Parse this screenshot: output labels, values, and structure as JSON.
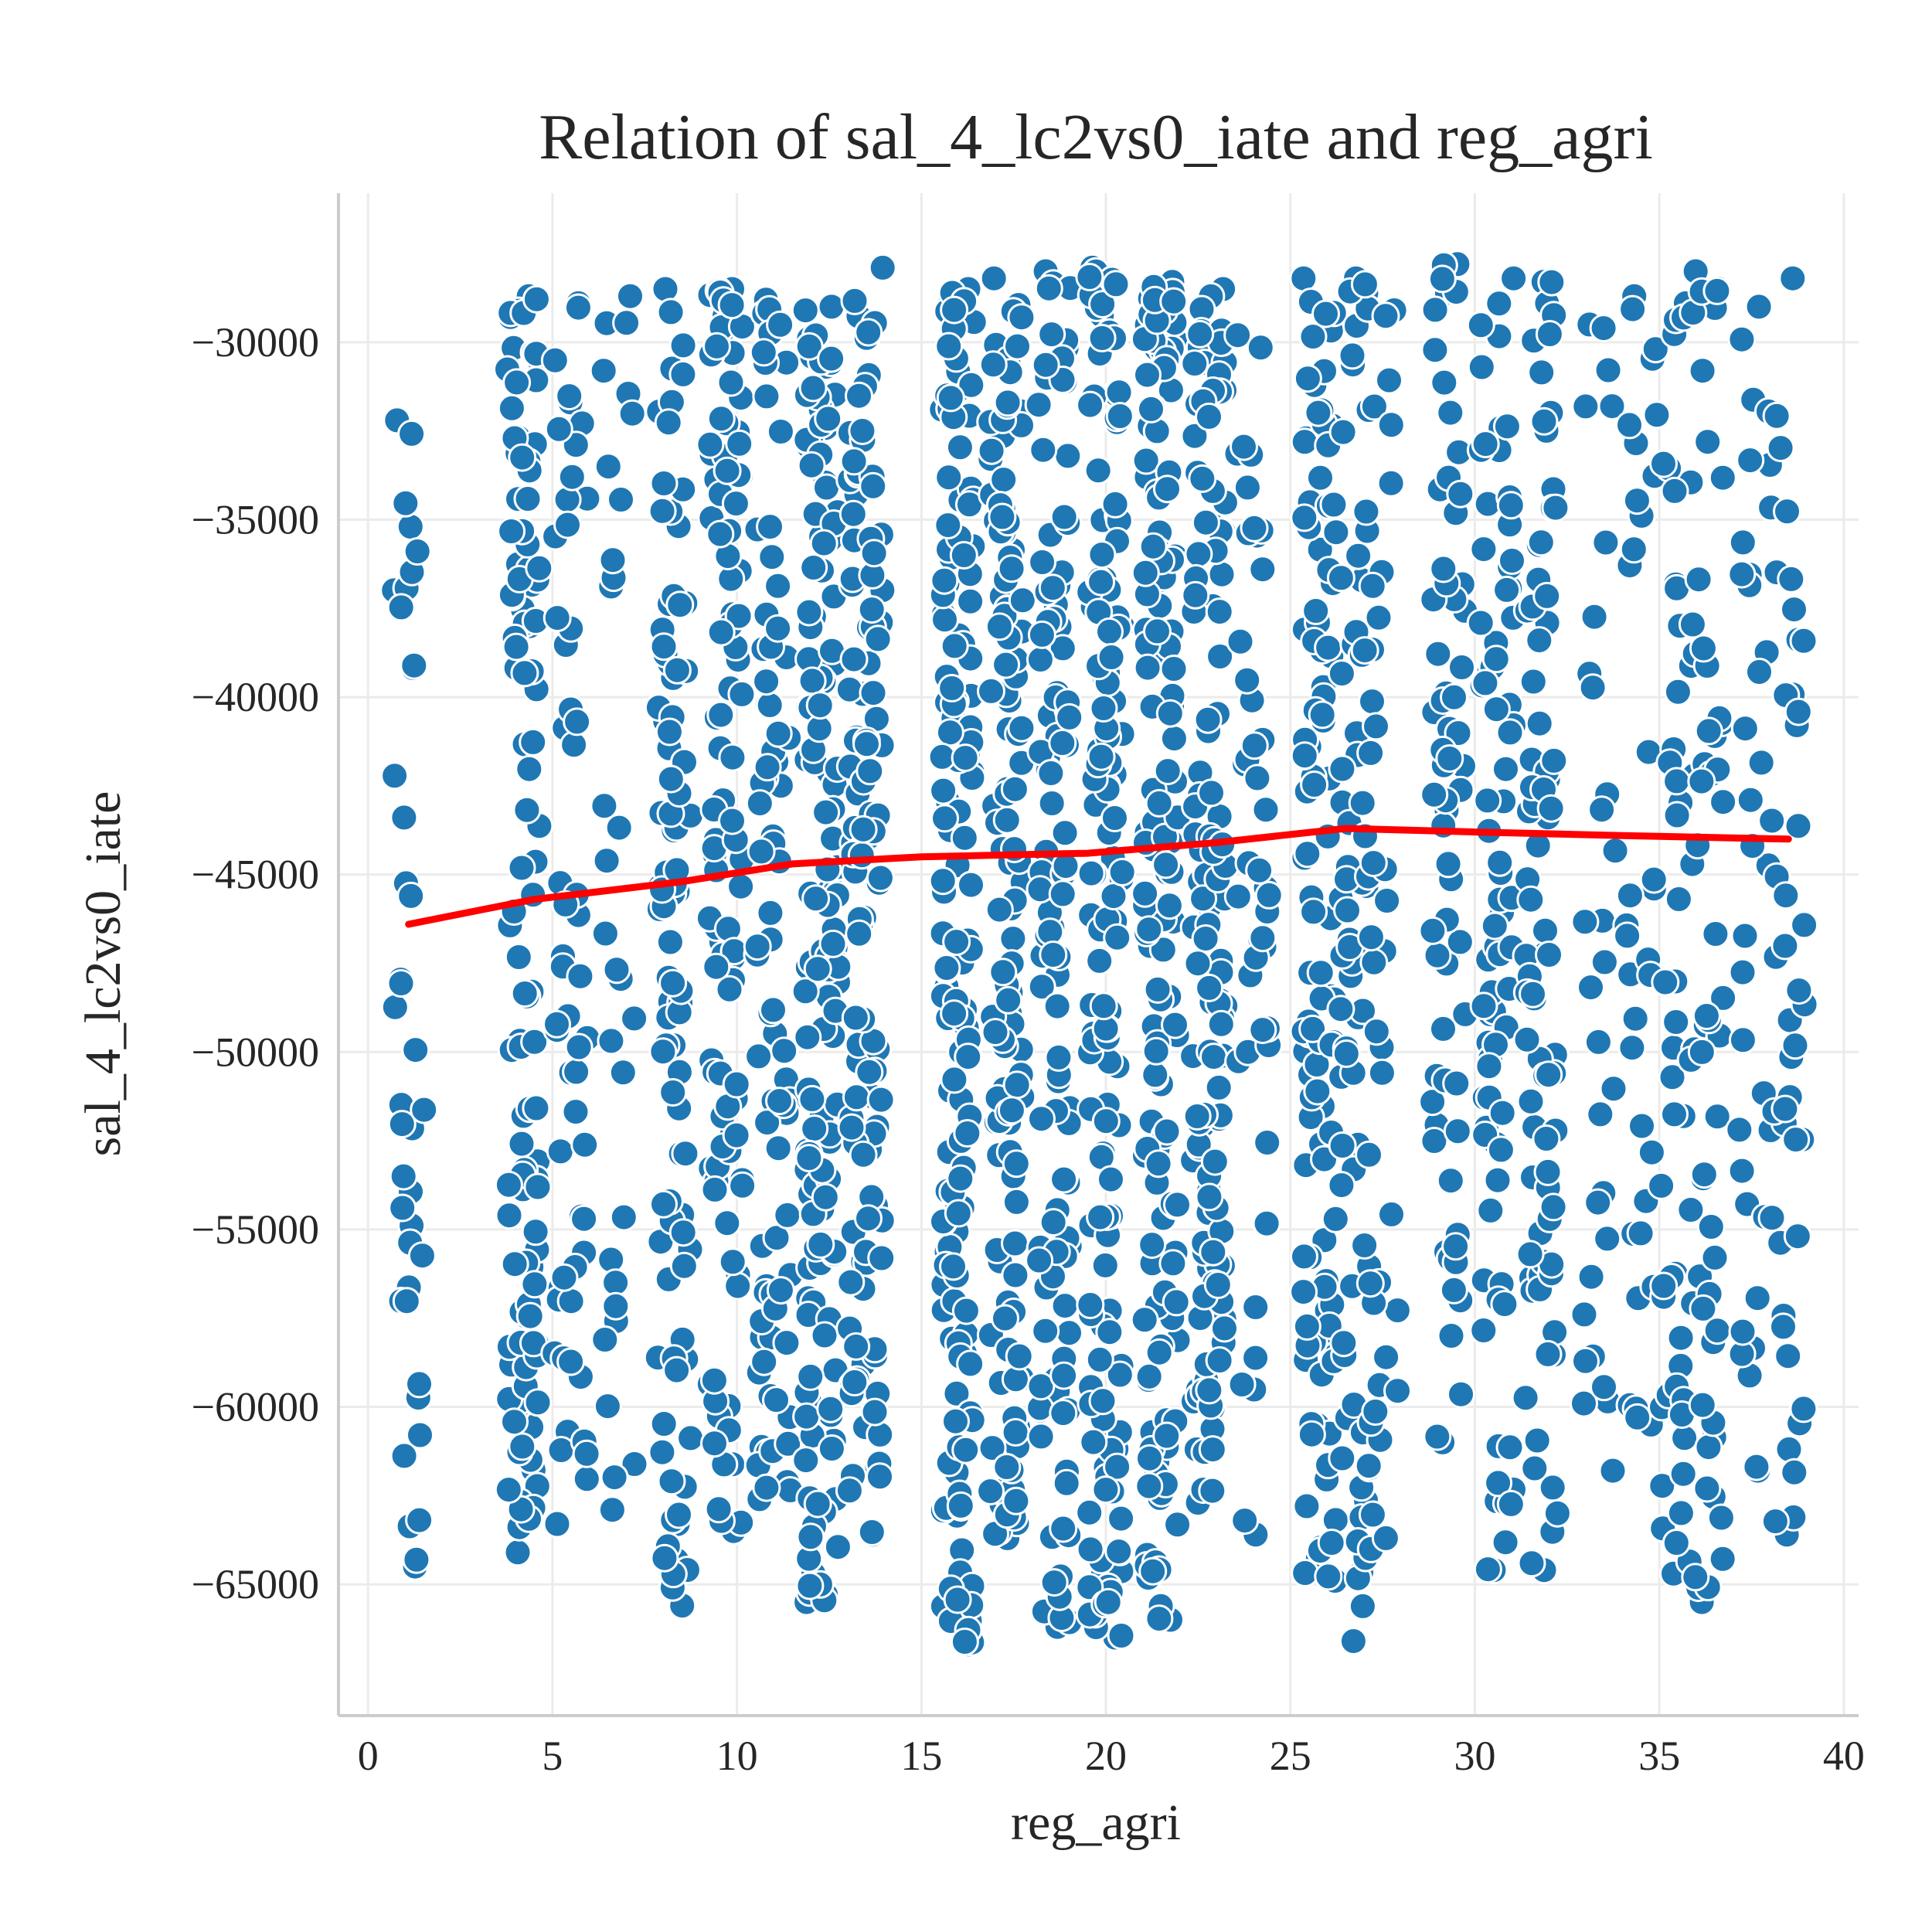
{
  "chart_data": {
    "type": "scatter",
    "title": "Relation of sal_4_lc2vs0_iate and reg_agri",
    "xlabel": "reg_agri",
    "ylabel": "sal_4_lc2vs0_iate",
    "xlim": [
      -0.8,
      40.4
    ],
    "ylim": [
      -68700,
      -25800
    ],
    "xticks": [
      0,
      5,
      10,
      15,
      20,
      25,
      30,
      35,
      40
    ],
    "yticks": [
      -30000,
      -35000,
      -40000,
      -45000,
      -50000,
      -55000,
      -60000,
      -65000
    ],
    "xtick_labels": [
      "0",
      "5",
      "10",
      "15",
      "20",
      "25",
      "30",
      "35",
      "40"
    ],
    "ytick_labels": [
      "−30000",
      "−35000",
      "−40000",
      "−45000",
      "−50000",
      "−55000",
      "−60000",
      "−65000"
    ],
    "grid": true,
    "colors": {
      "points": "#1f77b4",
      "point_edge": "#ffffff",
      "trend": "#ff0000"
    },
    "trend_line": {
      "x": [
        1.1,
        4.5,
        8.5,
        11.5,
        15,
        19.5,
        23,
        26.5,
        30,
        34,
        38.5
      ],
      "y": [
        -46400,
        -45700,
        -45200,
        -44700,
        -44500,
        -44400,
        -44100,
        -43700,
        -43800,
        -43900,
        -44000
      ]
    },
    "clusters": [
      {
        "x": 1.1,
        "n": 40,
        "ymin": -64500,
        "ymax": -32200
      },
      {
        "x": 4.2,
        "n": 110,
        "ymin": -64100,
        "ymax": -28700
      },
      {
        "x": 5.5,
        "n": 55,
        "ymin": -63300,
        "ymax": -28900
      },
      {
        "x": 6.8,
        "n": 30,
        "ymin": -62900,
        "ymax": -28700
      },
      {
        "x": 8.3,
        "n": 95,
        "ymin": -65600,
        "ymax": -28500
      },
      {
        "x": 9.7,
        "n": 105,
        "ymin": -63500,
        "ymax": -28500
      },
      {
        "x": 11.0,
        "n": 80,
        "ymin": -62600,
        "ymax": -28800
      },
      {
        "x": 12.3,
        "n": 150,
        "ymin": -65500,
        "ymax": -29000
      },
      {
        "x": 13.5,
        "n": 120,
        "ymin": -63600,
        "ymax": -27900
      },
      {
        "x": 16.0,
        "n": 150,
        "ymin": -66700,
        "ymax": -28500
      },
      {
        "x": 17.3,
        "n": 130,
        "ymin": -63700,
        "ymax": -28200
      },
      {
        "x": 18.6,
        "n": 110,
        "ymin": -66200,
        "ymax": -28000
      },
      {
        "x": 20.0,
        "n": 140,
        "ymin": -66500,
        "ymax": -27900
      },
      {
        "x": 21.5,
        "n": 150,
        "ymin": -66000,
        "ymax": -28300
      },
      {
        "x": 22.8,
        "n": 130,
        "ymin": -62700,
        "ymax": -28500
      },
      {
        "x": 24.0,
        "n": 45,
        "ymin": -63600,
        "ymax": -29800
      },
      {
        "x": 25.8,
        "n": 110,
        "ymin": -64900,
        "ymax": -28200
      },
      {
        "x": 26.8,
        "n": 75,
        "ymin": -66600,
        "ymax": -28200
      },
      {
        "x": 27.5,
        "n": 35,
        "ymin": -63700,
        "ymax": -29100
      },
      {
        "x": 29.3,
        "n": 70,
        "ymin": -61000,
        "ymax": -27800
      },
      {
        "x": 30.6,
        "n": 80,
        "ymin": -64600,
        "ymax": -28200
      },
      {
        "x": 31.8,
        "n": 80,
        "ymin": -64600,
        "ymax": -28300
      },
      {
        "x": 33.4,
        "n": 30,
        "ymin": -61800,
        "ymax": -29500
      },
      {
        "x": 34.5,
        "n": 35,
        "ymin": -60500,
        "ymax": -28700
      },
      {
        "x": 35.5,
        "n": 50,
        "ymin": -64700,
        "ymax": -28900
      },
      {
        "x": 36.3,
        "n": 55,
        "ymin": -65500,
        "ymax": -28000
      },
      {
        "x": 37.6,
        "n": 35,
        "ymin": -61800,
        "ymax": -29000
      },
      {
        "x": 38.5,
        "n": 45,
        "ymin": -63600,
        "ymax": -28200
      }
    ]
  }
}
